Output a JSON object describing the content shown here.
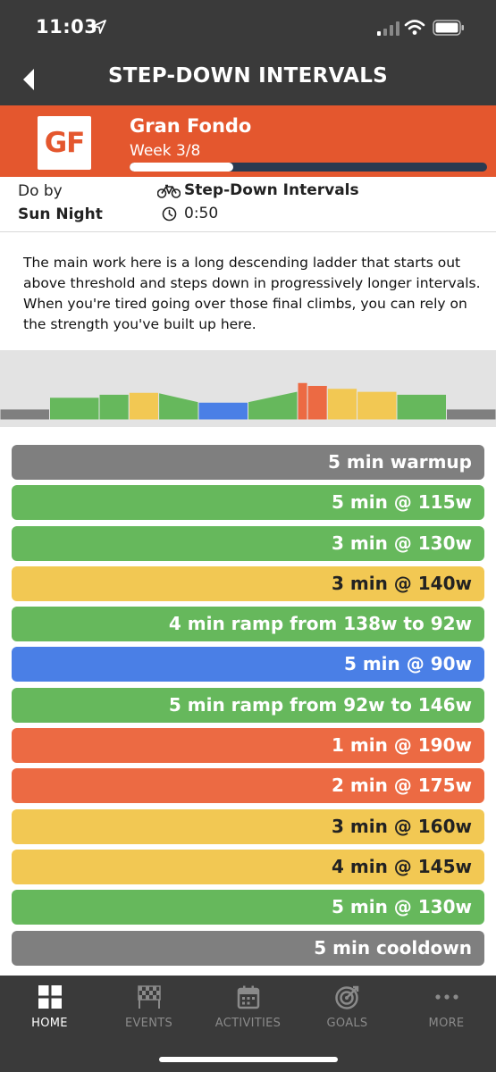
{
  "status_bar": {
    "time": "11:03"
  },
  "header": {
    "title": "STEP-DOWN INTERVALS"
  },
  "plan": {
    "logo_text": "GF",
    "name": "Gran Fondo",
    "week": "Week 3/8",
    "progress_fraction": 0.29,
    "colors": {
      "band": "#e4572e",
      "track": "#2a3a50",
      "fill": "#ffffff"
    }
  },
  "info": {
    "do_by_label": "Do by",
    "do_by_value": "Sun Night",
    "workout_type": "Step-Down Intervals",
    "duration": "0:50",
    "icons": [
      "bike-icon",
      "clock-icon"
    ]
  },
  "description": "The main work here is a long descending ladder that starts out above threshold and steps down in progressively longer intervals. When you're tired going over those final climbs, you can rely on the strength you've built up here.",
  "zone_colors": {
    "gray": "#7f7f7f",
    "green": "#66b85c",
    "yellow": "#f2c853",
    "blue": "#4a7fe6",
    "orange": "#ec6a43"
  },
  "steps": [
    {
      "label": "5 min warmup",
      "zone": "gray",
      "text": "white"
    },
    {
      "label": "5 min @ 115w",
      "zone": "green",
      "text": "white"
    },
    {
      "label": "3 min @ 130w",
      "zone": "green",
      "text": "white"
    },
    {
      "label": "3 min @ 140w",
      "zone": "yellow",
      "text": "dark"
    },
    {
      "label": "4 min ramp from 138w to 92w",
      "zone": "green",
      "text": "white"
    },
    {
      "label": "5 min @ 90w",
      "zone": "blue",
      "text": "white"
    },
    {
      "label": "5 min ramp from 92w to 146w",
      "zone": "green",
      "text": "white"
    },
    {
      "label": "1 min @ 190w",
      "zone": "orange",
      "text": "white"
    },
    {
      "label": "2 min @ 175w",
      "zone": "orange",
      "text": "white"
    },
    {
      "label": "3 min @ 160w",
      "zone": "yellow",
      "text": "dark"
    },
    {
      "label": "4 min @ 145w",
      "zone": "yellow",
      "text": "dark"
    },
    {
      "label": "5 min @ 130w",
      "zone": "green",
      "text": "white"
    },
    {
      "label": "5 min cooldown",
      "zone": "gray",
      "text": "white"
    }
  ],
  "tabs": [
    {
      "label": "HOME",
      "icon": "grid-icon",
      "active": true
    },
    {
      "label": "EVENTS",
      "icon": "checkered-flag-icon",
      "active": false
    },
    {
      "label": "ACTIVITIES",
      "icon": "calendar-icon",
      "active": false
    },
    {
      "label": "GOALS",
      "icon": "target-icon",
      "active": false
    },
    {
      "label": "MORE",
      "icon": "more-dots-icon",
      "active": false
    }
  ],
  "tab_colors": {
    "active": "#ffffff",
    "inactive": "#8a8a8a"
  }
}
